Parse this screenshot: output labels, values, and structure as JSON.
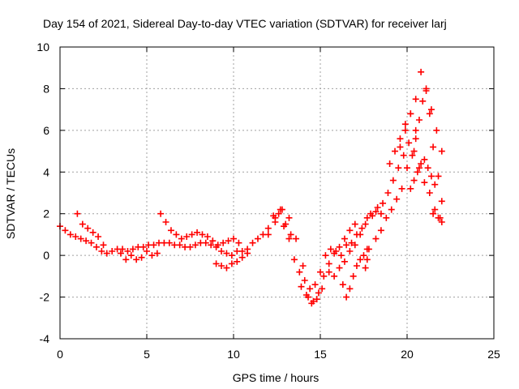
{
  "chart_data": {
    "type": "scatter",
    "title": "Day 154 of 2021, Sidereal Day-to-day VTEC variation (SDTVAR) for receiver larj",
    "xlabel": "GPS time / hours",
    "ylabel": "SDTVAR / TECUs",
    "xlim": [
      0,
      25
    ],
    "ylim": [
      -4,
      10
    ],
    "xticks": [
      0,
      5,
      10,
      15,
      20,
      25
    ],
    "yticks": [
      -4,
      -2,
      0,
      2,
      4,
      6,
      8,
      10
    ],
    "grid": true,
    "marker": "+",
    "colors": {
      "series": "#ff0000",
      "grid": "#a0a0a0",
      "axis": "#000000"
    },
    "series": [
      {
        "name": "SDTVAR",
        "x": [
          0.0,
          0.3,
          0.6,
          0.9,
          1.2,
          1.5,
          1.8,
          2.1,
          2.4,
          2.7,
          3.0,
          3.3,
          3.6,
          3.9,
          4.2,
          4.5,
          4.8,
          5.1,
          5.4,
          5.7,
          6.0,
          6.3,
          6.6,
          6.9,
          7.2,
          7.5,
          7.8,
          8.1,
          8.4,
          8.7,
          9.0,
          9.3,
          9.6,
          9.9,
          10.2,
          10.5,
          10.8,
          11.1,
          11.4,
          11.7,
          12.0,
          12.3,
          12.6,
          12.9,
          13.2,
          13.5,
          13.8,
          14.1,
          14.4,
          14.7,
          15.0,
          15.3,
          15.6,
          15.9,
          16.2,
          16.5,
          16.8,
          17.1,
          17.4,
          17.7,
          18.0,
          18.3,
          18.6,
          18.9,
          19.2,
          19.5,
          19.8,
          20.1,
          20.4,
          20.7,
          21.0,
          21.3,
          21.6,
          21.9,
          1.0,
          1.3,
          1.6,
          1.9,
          2.2,
          2.5,
          5.8,
          6.1,
          6.4,
          6.7,
          7.0,
          7.3,
          7.6,
          7.9,
          8.2,
          8.5,
          8.8,
          9.1,
          9.4,
          9.7,
          10.0,
          10.3,
          3.5,
          3.8,
          4.1,
          4.4,
          4.7,
          5.0,
          5.3,
          5.6,
          9.0,
          9.3,
          9.6,
          9.9,
          10.2,
          10.5,
          10.8,
          12.4,
          12.7,
          13.0,
          13.3,
          14.0,
          14.3,
          14.6,
          14.9,
          15.2,
          15.5,
          15.8,
          16.1,
          16.4,
          16.7,
          17.0,
          15.5,
          15.8,
          16.1,
          16.4,
          16.7,
          17.0,
          17.3,
          17.6,
          17.9,
          18.2,
          18.5,
          18.8,
          19.1,
          19.4,
          19.7,
          16.3,
          16.5,
          16.7,
          16.9,
          17.1,
          17.3,
          17.5,
          17.7,
          17.6,
          17.7,
          17.8,
          18.2,
          18.5,
          19.6,
          19.9,
          20.2,
          20.5,
          20.8,
          21.1,
          21.4,
          21.7,
          22.0,
          20.0,
          20.3,
          20.5,
          20.7,
          20.9,
          21.1,
          21.3,
          21.5,
          21.8,
          22.0,
          20.2,
          20.4,
          20.6,
          20.8,
          21.0,
          21.2,
          21.4,
          21.6,
          19.0,
          19.3,
          19.6,
          19.9,
          20.2,
          20.5,
          21.5,
          21.8,
          22.0,
          13.9,
          14.2,
          14.5,
          14.8,
          15.1,
          12.0,
          12.4,
          12.8,
          13.2,
          13.6
        ],
        "y": [
          1.4,
          1.2,
          1.0,
          0.9,
          0.8,
          0.7,
          0.6,
          0.4,
          0.2,
          0.1,
          0.2,
          0.3,
          0.3,
          0.2,
          0.3,
          0.4,
          0.4,
          0.5,
          0.5,
          0.6,
          0.6,
          0.6,
          0.5,
          0.5,
          0.4,
          0.4,
          0.5,
          0.6,
          0.6,
          0.5,
          0.4,
          0.2,
          0.1,
          0.0,
          0.2,
          0.2,
          0.3,
          0.6,
          0.8,
          1.0,
          1.3,
          1.9,
          2.0,
          1.4,
          0.8,
          -0.2,
          -0.8,
          -1.2,
          -1.6,
          -1.4,
          -0.8,
          0.0,
          0.3,
          0.2,
          0.0,
          0.5,
          0.6,
          1.0,
          1.3,
          1.8,
          1.9,
          2.3,
          2.5,
          3.0,
          3.6,
          4.2,
          4.8,
          5.4,
          5.0,
          4.2,
          3.5,
          3.0,
          2.2,
          1.8,
          2.0,
          1.5,
          1.3,
          1.1,
          0.9,
          0.5,
          2.0,
          1.6,
          1.2,
          1.0,
          0.8,
          0.9,
          1.0,
          1.1,
          1.0,
          0.9,
          0.7,
          0.5,
          0.6,
          0.7,
          0.8,
          0.6,
          0.1,
          -0.2,
          0.0,
          -0.2,
          -0.1,
          0.2,
          0.0,
          0.1,
          -0.4,
          -0.5,
          -0.6,
          -0.4,
          -0.3,
          -0.1,
          0.1,
          1.8,
          2.2,
          1.5,
          1.0,
          -0.5,
          -2.0,
          -2.2,
          -1.8,
          -1.0,
          -0.4,
          0.1,
          0.4,
          0.8,
          1.2,
          1.5,
          -0.8,
          -1.0,
          -0.6,
          -0.3,
          0.2,
          0.5,
          1.0,
          1.5,
          2.0,
          2.1,
          2.0,
          1.8,
          2.2,
          2.7,
          3.2,
          -1.4,
          -2.0,
          -1.6,
          -1.0,
          -0.5,
          -0.2,
          0.0,
          0.3,
          -0.6,
          -0.2,
          0.3,
          0.8,
          1.2,
          5.2,
          6.0,
          6.8,
          7.5,
          8.8,
          8.0,
          7.0,
          6.0,
          5.0,
          4.2,
          4.8,
          5.6,
          6.5,
          7.4,
          7.9,
          6.8,
          5.2,
          3.8,
          2.6,
          3.2,
          3.6,
          4.0,
          4.4,
          4.6,
          4.2,
          3.8,
          3.4,
          4.4,
          5.0,
          5.6,
          6.3,
          6.8,
          6.0,
          2.0,
          1.8,
          1.6,
          -1.5,
          -1.9,
          -2.3,
          -2.1,
          -1.6,
          1.0,
          1.6,
          2.2,
          1.8,
          0.8
        ]
      }
    ]
  }
}
